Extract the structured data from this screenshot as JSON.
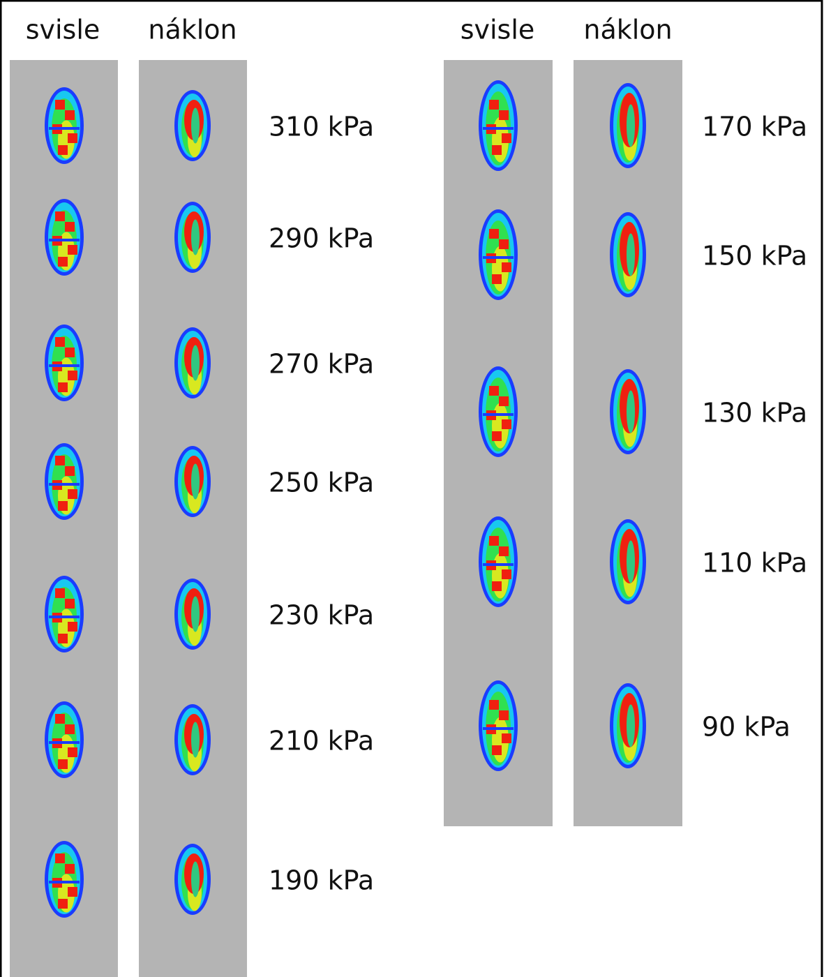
{
  "left": {
    "headers": [
      "svisle",
      "náklon"
    ],
    "labels": [
      "310 kPa",
      "290 kPa",
      "270 kPa",
      "250 kPa",
      "230 kPa",
      "210 kPa",
      "190 kPa"
    ]
  },
  "right": {
    "headers": [
      "svisle",
      "náklon"
    ],
    "labels": [
      "170 kPa",
      "150 kPa",
      "130 kPa",
      "110 kPa",
      "90 kPa"
    ]
  }
}
